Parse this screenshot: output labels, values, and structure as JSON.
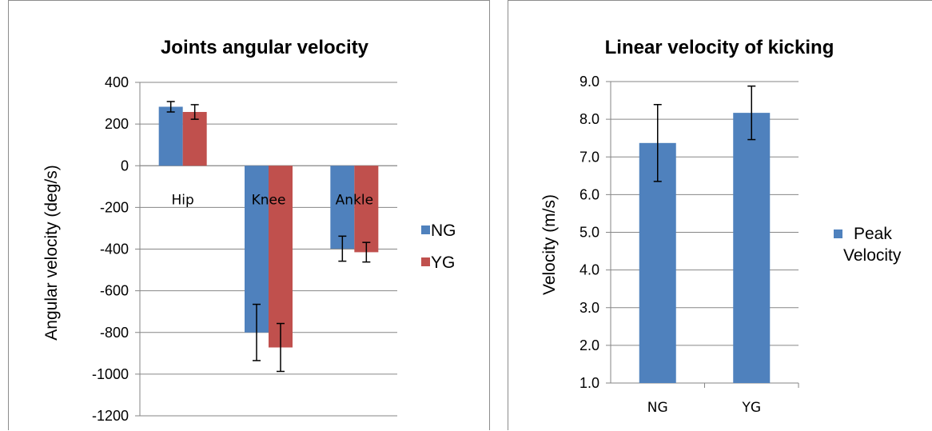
{
  "chart_data": [
    {
      "type": "bar",
      "title": "Joints angular velocity",
      "xlabel": "",
      "ylabel": "Angular velocity (deg/s)",
      "categories": [
        "Hip",
        "Knee",
        "Ankle"
      ],
      "ylim": [
        -1200,
        400
      ],
      "yticks": [
        "400",
        "200",
        "0",
        "-200",
        "-400",
        "-600",
        "-800",
        "-1000",
        "-1200"
      ],
      "grid": true,
      "legend_position": "right",
      "series": [
        {
          "name": "NG",
          "color": "#4f81bd",
          "values": [
            283,
            -800,
            -398
          ],
          "error": [
            25,
            135,
            60
          ]
        },
        {
          "name": "YG",
          "color": "#c0504d",
          "values": [
            258,
            -872,
            -415
          ],
          "error": [
            35,
            115,
            47
          ]
        }
      ]
    },
    {
      "type": "bar",
      "title": "Linear velocity of kicking",
      "xlabel": "",
      "ylabel": "Velocity (m/s)",
      "categories": [
        "NG",
        "YG"
      ],
      "ylim": [
        1.0,
        9.0
      ],
      "yticks": [
        "9.0",
        "8.0",
        "7.0",
        "6.0",
        "5.0",
        "4.0",
        "3.0",
        "2.0",
        "1.0"
      ],
      "grid": true,
      "legend_position": "right",
      "series": [
        {
          "name": "Peak Velocity",
          "legend_lines": [
            "Peak",
            "Velocity"
          ],
          "color": "#4f81bd",
          "values": [
            7.37,
            8.17
          ],
          "error": [
            1.02,
            0.71
          ]
        }
      ]
    }
  ]
}
